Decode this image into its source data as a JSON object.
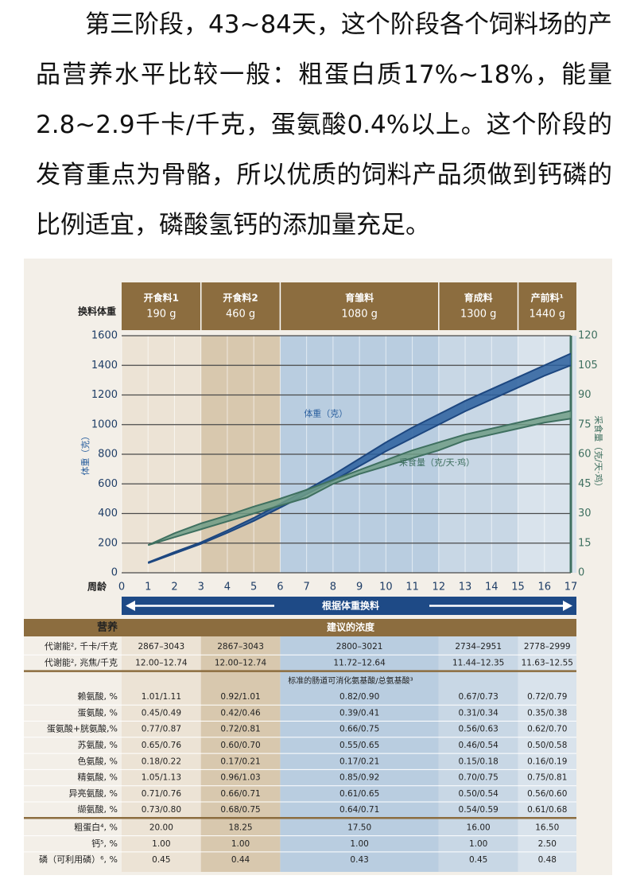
{
  "article": {
    "paragraph": "第三阶段，43~84天，这个阶段各个饲料场的产品营养水平比较一般：粗蛋白质17%~18%，能量2.8~2.9千卡/千克，蛋氨酸0.4%以上。这个阶段的发育重点为骨骼，所以优质的饲料产品须做到钙磷的比例适宜，磷酸氢钙的添加量充足。"
  },
  "chart_data": {
    "type": "band",
    "phase_header": "换料体重",
    "phases": [
      {
        "name": "开食料1",
        "weight": "190 g",
        "start": 0,
        "end": 3,
        "color": "#ece3d5"
      },
      {
        "name": "开食料2",
        "weight": "460 g",
        "start": 3,
        "end": 6,
        "color": "#d8c8ae"
      },
      {
        "name": "育雏料",
        "weight": "1080 g",
        "start": 6,
        "end": 12,
        "color": "#b9cde0"
      },
      {
        "name": "育成料",
        "weight": "1300 g",
        "start": 12,
        "end": 15,
        "color": "#c8d7e5"
      },
      {
        "name": "产前料¹",
        "weight": "1440 g",
        "start": 15,
        "end": 17,
        "color": "#d9e3ec"
      }
    ],
    "x": [
      1,
      2,
      3,
      4,
      5,
      6,
      7,
      8,
      9,
      10,
      11,
      12,
      13,
      14,
      15,
      16,
      17
    ],
    "xlim": [
      0,
      17
    ],
    "xticks": [
      0,
      1,
      2,
      3,
      4,
      5,
      6,
      7,
      8,
      9,
      10,
      11,
      12,
      13,
      14,
      15,
      16,
      17
    ],
    "xlabel": "周龄",
    "ylim": [
      0,
      1600
    ],
    "yticks": [
      0,
      200,
      400,
      600,
      800,
      1000,
      1200,
      1400,
      1600
    ],
    "ylabel": "体重（克）",
    "y2lim": [
      0,
      120
    ],
    "y2ticks": [
      0,
      15,
      30,
      45,
      60,
      75,
      90,
      105,
      120
    ],
    "y2label": "采食量（克/天·鸡）",
    "grid": true,
    "arrow_label": "根据体重换料",
    "series": [
      {
        "name": "体重（克）",
        "color": "#2a5f9e",
        "low": [
          65,
          130,
          195,
          270,
          350,
          440,
          530,
          620,
          720,
          820,
          910,
          1000,
          1090,
          1170,
          1250,
          1330,
          1400
        ],
        "high": [
          70,
          140,
          205,
          285,
          370,
          465,
          560,
          660,
          770,
          880,
          980,
          1070,
          1160,
          1240,
          1320,
          1400,
          1480
        ]
      },
      {
        "name": "采食量（克/天·鸡）",
        "color": "#6f9c86",
        "axis": "y2",
        "low": [
          14,
          18,
          22,
          26,
          30,
          34,
          38,
          45,
          50,
          54,
          58,
          62,
          67,
          70,
          73,
          76,
          78
        ],
        "high": [
          14,
          20,
          25,
          29,
          33.5,
          37.5,
          42,
          47,
          52,
          57,
          62,
          66,
          70,
          73,
          76,
          79,
          82
        ]
      }
    ]
  },
  "table": {
    "header": [
      "营养",
      "建议的浓度"
    ],
    "groups": [
      {
        "rows": [
          [
            "代谢能², 千卡/千克",
            "2867–3043",
            "2867–3043",
            "2800–3021",
            "2734–2951",
            "2778–2999"
          ],
          [
            "代谢能², 兆焦/千克",
            "12.00–12.74",
            "12.00–12.74",
            "11.72–12.64",
            "11.44–12.35",
            "11.63–12.55"
          ]
        ]
      },
      {
        "title": "标准的肠道可消化氨基酸/总氨基酸³",
        "rows": [
          [
            "赖氨酸, %",
            "1.01/1.11",
            "0.92/1.01",
            "0.82/0.90",
            "0.67/0.73",
            "0.72/0.79"
          ],
          [
            "蛋氨酸, %",
            "0.45/0.49",
            "0.42/0.46",
            "0.39/0.41",
            "0.31/0.34",
            "0.35/0.38"
          ],
          [
            "蛋氨酸+胱氨酸,%",
            "0.77/0.87",
            "0.72/0.81",
            "0.66/0.75",
            "0.56/0.63",
            "0.62/0.70"
          ],
          [
            "苏氨酸, %",
            "0.65/0.76",
            "0.60/0.70",
            "0.55/0.65",
            "0.46/0.54",
            "0.50/0.58"
          ],
          [
            "色氨酸, %",
            "0.18/0.22",
            "0.17/0.21",
            "0.17/0.21",
            "0.15/0.18",
            "0.16/0.19"
          ],
          [
            "精氨酸, %",
            "1.05/1.13",
            "0.96/1.03",
            "0.85/0.92",
            "0.70/0.75",
            "0.75/0.81"
          ],
          [
            "异亮氨酸, %",
            "0.71/0.76",
            "0.66/0.71",
            "0.61/0.65",
            "0.50/0.54",
            "0.56/0.60"
          ],
          [
            "缬氨酸, %",
            "0.73/0.80",
            "0.68/0.75",
            "0.64/0.71",
            "0.54/0.59",
            "0.61/0.68"
          ]
        ]
      },
      {
        "rows": [
          [
            "粗蛋白⁴, %",
            "20.00",
            "18.25",
            "17.50",
            "16.00",
            "16.50"
          ],
          [
            "钙⁵, %",
            "1.00",
            "1.00",
            "1.00",
            "1.00",
            "2.50"
          ],
          [
            "磷（可利用磷）⁶, %",
            "0.45",
            "0.44",
            "0.43",
            "0.45",
            "0.48"
          ]
        ]
      }
    ]
  }
}
